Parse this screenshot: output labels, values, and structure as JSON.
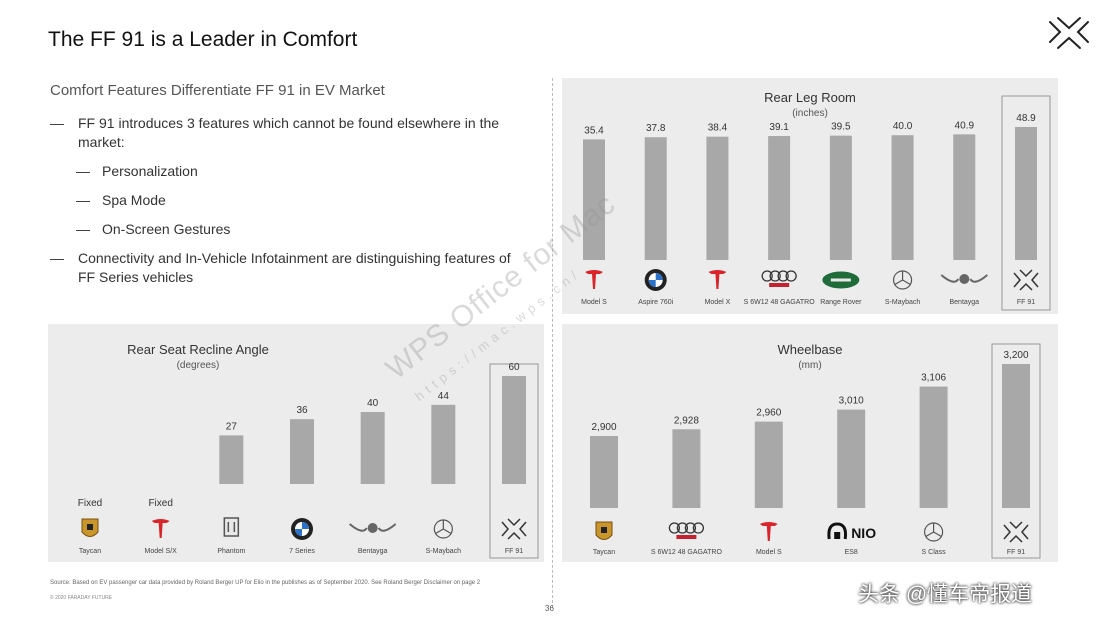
{
  "slide": {
    "title": "The FF 91 is a Leader in Comfort",
    "subtitle": "Comfort Features Differentiate FF 91 in EV Market",
    "bullets": [
      {
        "text": "FF 91 introduces 3 features which cannot be found elsewhere in the market:",
        "level": 1
      },
      {
        "text": "Personalization",
        "level": 2
      },
      {
        "text": "Spa Mode",
        "level": 2
      },
      {
        "text": "On-Screen Gestures",
        "level": 2
      },
      {
        "text": "Connectivity and In-Vehicle Infotainment are distinguishing features of FF Series vehicles",
        "level": 1
      }
    ],
    "watermark": "WPS Office for Mac",
    "watermark_url": "https://mac.wps.cn/",
    "source": "Source:      Based on EV passenger car data provided by Roland Berger UP for Elio in the publishes as of September 2020. See Roland Berger Disclaimer on page 2",
    "copyright": "© 2020 FARADAY FUTURE",
    "page_number": "36",
    "toutiao_watermark": "头条 @懂车帝报道"
  },
  "chart_data": [
    {
      "type": "bar",
      "title": "Rear Leg Room",
      "unit": "(inches)",
      "categories": [
        "Model S",
        "Aspire 760i",
        "Model X",
        "S 6W12 48 GAGATRO",
        "Range Rover",
        "S-Maybach",
        "Bentayga",
        "FF 91"
      ],
      "values": [
        35.4,
        37.8,
        38.4,
        39.1,
        39.5,
        40.0,
        40.9,
        48.9
      ],
      "value_labels": [
        "35.4",
        "37.8",
        "38.4",
        "39.1",
        "39.5",
        "40.0",
        "40.9",
        "48.9"
      ],
      "logos": [
        "tesla",
        "bmw",
        "tesla",
        "audi",
        "landrover",
        "mercedes",
        "bentley",
        "ff"
      ],
      "highlight_index": 7,
      "bar_color": "#a8a8a8",
      "ylim": [
        0,
        50
      ]
    },
    {
      "type": "bar",
      "title": "Rear Seat Recline Angle",
      "unit": "(degrees)",
      "categories": [
        "Taycan",
        "Model S/X",
        "Phantom",
        "7 Series",
        "Bentayga",
        "S-Maybach",
        "FF 91"
      ],
      "values": [
        0,
        0,
        27,
        36,
        40,
        44,
        60
      ],
      "value_labels": [
        "Fixed",
        "Fixed",
        "27",
        "36",
        "40",
        "44",
        "60"
      ],
      "logos": [
        "porsche",
        "tesla",
        "rollsroyce",
        "bmw",
        "bentley",
        "mercedes",
        "ff"
      ],
      "highlight_index": 6,
      "bar_color": "#a8a8a8",
      "ylim": [
        0,
        60
      ]
    },
    {
      "type": "bar",
      "title": "Wheelbase",
      "unit": "(mm)",
      "categories": [
        "Taycan",
        "S 6W12 48 GAGATRO",
        "Model S",
        "ES8",
        "S Class",
        "FF 91"
      ],
      "values": [
        2900,
        2928,
        2960,
        3010,
        3106,
        3200
      ],
      "value_labels": [
        "2,900",
        "2,928",
        "2,960",
        "3,010",
        "3,106",
        "3,200"
      ],
      "logos": [
        "porsche",
        "audi",
        "tesla",
        "nio",
        "mercedes",
        "ff"
      ],
      "highlight_index": 5,
      "bar_color": "#a8a8a8",
      "ylim": [
        2800,
        3200
      ]
    }
  ]
}
